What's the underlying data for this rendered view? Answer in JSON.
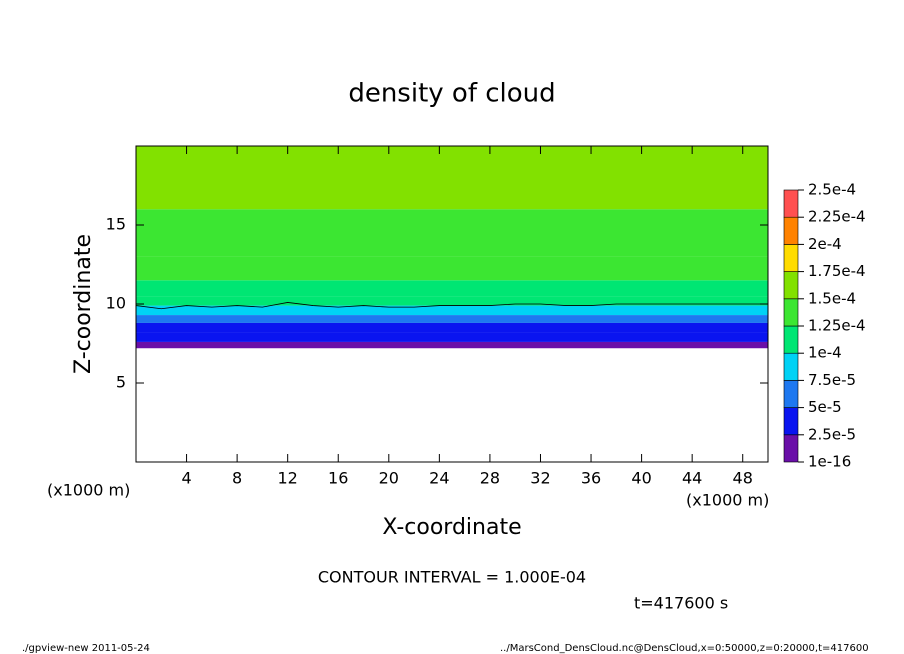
{
  "chart_data": {
    "type": "contour",
    "title": "density of cloud",
    "xlabel": "X-coordinate",
    "ylabel": "Z-coordinate",
    "x_unit": "(x1000 m)",
    "xlim": [
      0,
      50
    ],
    "ylim": [
      0,
      20
    ],
    "xticks": [
      4,
      8,
      12,
      16,
      20,
      24,
      28,
      32,
      36,
      40,
      44,
      48
    ],
    "yticks": [
      5,
      10,
      15
    ],
    "z": [
      7.2,
      7.6,
      8.2,
      8.8,
      9.3,
      9.9,
      10.5,
      11.5,
      13,
      16
    ],
    "values": [
      2e-05,
      3e-05,
      4e-05,
      6e-05,
      8e-05,
      0.00011,
      0.00012,
      0.00014,
      0.000145,
      0.000155
    ],
    "contour_level": {
      "value": 0.0001,
      "label": "1.000E-04"
    },
    "contour_x": [
      0,
      2,
      4,
      6,
      8,
      10,
      12,
      14,
      16,
      18,
      20,
      22,
      24,
      26,
      28,
      30,
      32,
      34,
      36,
      38,
      40,
      42,
      44,
      46,
      48,
      50
    ],
    "contour_z": [
      9.9,
      9.7,
      9.9,
      9.8,
      9.9,
      9.8,
      10.1,
      9.9,
      9.8,
      9.9,
      9.8,
      9.8,
      9.9,
      9.9,
      9.9,
      10,
      10,
      9.9,
      9.9,
      10,
      10,
      10,
      10,
      10,
      10,
      10
    ],
    "levels": [
      {
        "value": 1e-16,
        "label": "1e-16"
      },
      {
        "value": 2.5e-05,
        "label": "2.5e-5"
      },
      {
        "value": 5e-05,
        "label": "5e-5"
      },
      {
        "value": 7.5e-05,
        "label": "7.5e-5"
      },
      {
        "value": 0.0001,
        "label": "1e-4"
      },
      {
        "value": 0.000125,
        "label": "1.25e-4"
      },
      {
        "value": 0.00015,
        "label": "1.5e-4"
      },
      {
        "value": 0.000175,
        "label": "1.75e-4"
      },
      {
        "value": 0.0002,
        "label": "2e-4"
      },
      {
        "value": 0.000225,
        "label": "2.25e-4"
      },
      {
        "value": 0.00025,
        "label": "2.5e-4"
      }
    ],
    "colors": [
      "#6a0fa8",
      "#0a14f0",
      "#1e78f0",
      "#00d2f5",
      "#00e673",
      "#3ce632",
      "#82e100",
      "#ffdc00",
      "#ff8200",
      "#ff5050"
    ],
    "contour_interval_text": "CONTOUR INTERVAL = 1.000E-04",
    "time_text": "t=417600 s",
    "footer_left": "./gpview-new  2011-05-24",
    "footer_right": "../MarsCond_DensCloud.nc@DensCloud,x=0:50000,z=0:20000,t=417600"
  }
}
